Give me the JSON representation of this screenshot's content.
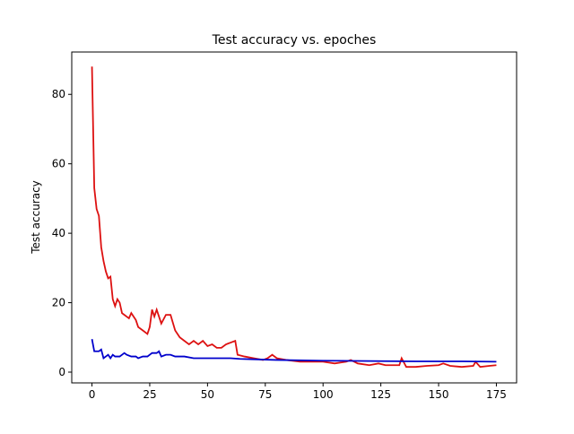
{
  "chart_data": {
    "type": "line",
    "title": "Test accuracy vs. epoches",
    "y_label": "Test accuracy",
    "xlim": [
      -8.75,
      183.75
    ],
    "xticks": [
      0,
      25,
      50,
      75,
      100,
      125,
      150,
      175
    ],
    "ylim": [
      -3.1,
      92.2
    ],
    "yticks": [
      0,
      20,
      40,
      60,
      80
    ],
    "series": [
      {
        "color": "#dd1111",
        "x": [
          0,
          1,
          2,
          3,
          4,
          5,
          6,
          7,
          8,
          9,
          10,
          11,
          12,
          13,
          14,
          15,
          16,
          17,
          18,
          19,
          20,
          22,
          24,
          25,
          26,
          27,
          28,
          29,
          30,
          32,
          34,
          36,
          38,
          40,
          42,
          44,
          46,
          48,
          50,
          52,
          54,
          56,
          58,
          60,
          62,
          63,
          66,
          70,
          74,
          76,
          78,
          80,
          84,
          90,
          95,
          100,
          105,
          110,
          112,
          115,
          120,
          124,
          127,
          130,
          133,
          134,
          136,
          140,
          145,
          150,
          152,
          155,
          160,
          165,
          166,
          168,
          172,
          175
        ],
        "values": [
          88,
          53,
          47,
          45,
          36,
          32,
          29,
          27,
          27.5,
          21,
          19,
          21,
          20,
          17,
          16.5,
          16,
          15.5,
          17,
          16,
          15,
          13,
          12,
          11,
          13,
          18,
          16,
          18,
          16,
          14,
          16.5,
          16.5,
          12,
          10,
          9,
          8,
          9,
          8,
          9,
          7.5,
          8,
          7,
          7,
          8,
          8.5,
          9,
          5,
          4.5,
          4,
          3.5,
          4,
          5,
          4,
          3.5,
          3,
          3,
          3,
          2.5,
          3,
          3.5,
          2.5,
          2,
          2.5,
          2,
          2,
          2,
          4,
          1.5,
          1.5,
          1.8,
          2,
          2.5,
          1.8,
          1.5,
          1.8,
          3,
          1.5,
          1.8,
          2
        ]
      },
      {
        "color": "#0000cc",
        "x": [
          0,
          1,
          2,
          3,
          4,
          5,
          6,
          7,
          8,
          9,
          10,
          12,
          14,
          15,
          17,
          19,
          20,
          22,
          24,
          26,
          28,
          29,
          30,
          32,
          34,
          36,
          40,
          44,
          48,
          52,
          56,
          60,
          64,
          70,
          80,
          100,
          120,
          140,
          160,
          175
        ],
        "values": [
          9.5,
          6,
          6,
          6,
          6.5,
          4,
          4.5,
          5,
          4,
          5,
          4.5,
          4.5,
          5.5,
          5,
          4.5,
          4.5,
          4,
          4.5,
          4.5,
          5.5,
          5.5,
          6,
          4.5,
          5,
          5,
          4.5,
          4.5,
          4,
          4,
          4,
          4,
          4,
          3.8,
          3.7,
          3.5,
          3.3,
          3.2,
          3.1,
          3.1,
          3
        ]
      }
    ]
  }
}
